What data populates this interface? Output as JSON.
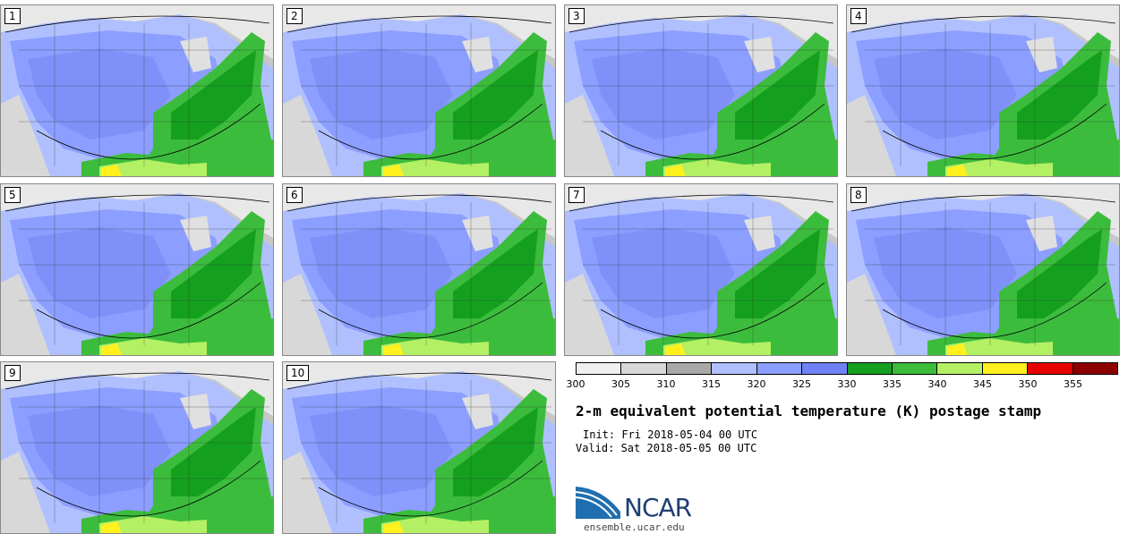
{
  "panels": [
    {
      "label": "1"
    },
    {
      "label": "2"
    },
    {
      "label": "3"
    },
    {
      "label": "4"
    },
    {
      "label": "5"
    },
    {
      "label": "6"
    },
    {
      "label": "7"
    },
    {
      "label": "8"
    },
    {
      "label": "9"
    },
    {
      "label": "10"
    }
  ],
  "colorbar": {
    "colors": [
      "#f0f0f0",
      "#d8d8d8",
      "#a8a8a8",
      "#b0c0ff",
      "#8c9eff",
      "#6f82f5",
      "#14a01e",
      "#3cbc3c",
      "#b4f064",
      "#fff01e",
      "#e60000",
      "#8c0000"
    ],
    "ticks": [
      "300",
      "305",
      "310",
      "315",
      "320",
      "325",
      "330",
      "335",
      "340",
      "345",
      "350",
      "355"
    ]
  },
  "title": "2-m equivalent potential temperature (K) postage stamp",
  "init": "Init: Fri 2018-05-04 00 UTC",
  "valid": "Valid: Sat 2018-05-05 00 UTC",
  "logo": {
    "name": "NCAR",
    "site": "ensemble.ucar.edu"
  }
}
